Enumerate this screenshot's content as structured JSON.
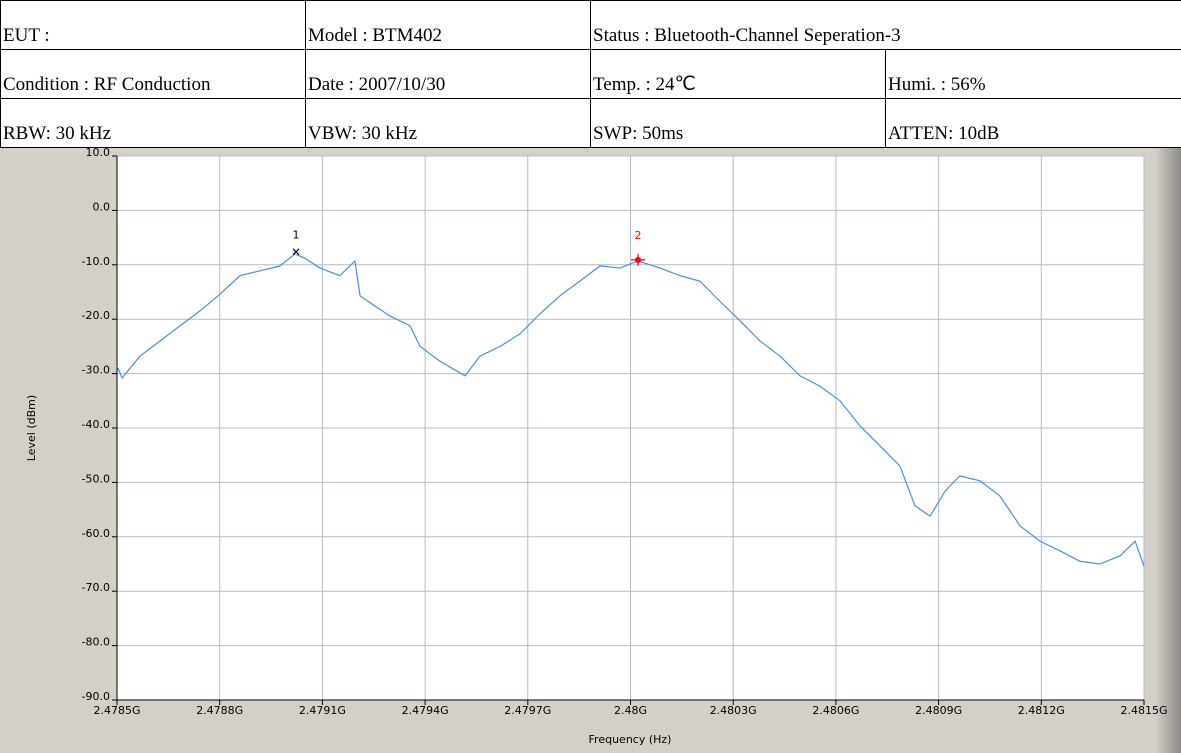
{
  "table": {
    "rows": [
      [
        "EUT :",
        "Model : BTM402",
        "Status : Bluetooth-Channel Seperation-3"
      ],
      [
        "Condition : RF Conduction",
        "Date : 2007/10/30",
        "Temp. : 24℃",
        "Humi. : 56%"
      ],
      [
        "RBW: 30 kHz",
        "VBW: 30 kHz",
        "SWP: 50ms",
        "ATTEN: 10dB"
      ]
    ]
  },
  "chart_data": {
    "type": "line",
    "xlabel": "Frequency (Hz)",
    "ylabel": "Level (dBm)",
    "grid": true,
    "xlim": [
      2478500000,
      2481500000
    ],
    "ylim": [
      -90,
      10
    ],
    "xticks": [
      {
        "value": 2478500000,
        "label": "2.4785G"
      },
      {
        "value": 2478800000,
        "label": "2.4788G"
      },
      {
        "value": 2479100000,
        "label": "2.4791G"
      },
      {
        "value": 2479400000,
        "label": "2.4794G"
      },
      {
        "value": 2479700000,
        "label": "2.4797G"
      },
      {
        "value": 2480000000,
        "label": "2.48G"
      },
      {
        "value": 2480300000,
        "label": "2.4803G"
      },
      {
        "value": 2480600000,
        "label": "2.4806G"
      },
      {
        "value": 2480900000,
        "label": "2.4809G"
      },
      {
        "value": 2481200000,
        "label": "2.4812G"
      },
      {
        "value": 2481500000,
        "label": "2.4815G"
      }
    ],
    "yticks": [
      {
        "value": 10,
        "label": "10.0"
      },
      {
        "value": 0,
        "label": "0.0"
      },
      {
        "value": -10,
        "label": "-10.0"
      },
      {
        "value": -20,
        "label": "-20.0"
      },
      {
        "value": -30,
        "label": "-30.0"
      },
      {
        "value": -40,
        "label": "-40.0"
      },
      {
        "value": -50,
        "label": "-50.0"
      },
      {
        "value": -60,
        "label": "-60.0"
      },
      {
        "value": -70,
        "label": "-70.0"
      },
      {
        "value": -80,
        "label": "-80.0"
      },
      {
        "value": -90,
        "label": "-90.0"
      }
    ],
    "series": [
      {
        "color": "#4a90d9",
        "x": [
          2478500000,
          2478515000,
          2478567000,
          2478626000,
          2478684000,
          2478742000,
          2478801000,
          2478859000,
          2478918000,
          2478976000,
          2479020000,
          2479049000,
          2479093000,
          2479151000,
          2479195000,
          2479210000,
          2479254000,
          2479297000,
          2479356000,
          2479385000,
          2479443000,
          2479517000,
          2479560000,
          2479619000,
          2479677000,
          2479736000,
          2479794000,
          2479852000,
          2479911000,
          2479969000,
          2480022000,
          2480086000,
          2480145000,
          2480203000,
          2480261000,
          2480320000,
          2480378000,
          2480437000,
          2480495000,
          2480553000,
          2480612000,
          2480670000,
          2480729000,
          2480787000,
          2480831000,
          2480875000,
          2480919000,
          2480962000,
          2481021000,
          2481079000,
          2481138000,
          2481196000,
          2481255000,
          2481313000,
          2481371000,
          2481430000,
          2481474000,
          2481500000
        ],
        "values": [
          -28.6,
          -30.8,
          -26.8,
          -24,
          -21.2,
          -18.5,
          -15.4,
          -12,
          -11.1,
          -10.2,
          -8,
          -8.8,
          -10.6,
          -12,
          -9.3,
          -15.7,
          -17.6,
          -19.4,
          -21.2,
          -25,
          -27.7,
          -30.4,
          -26.8,
          -25,
          -22.7,
          -19,
          -15.7,
          -13,
          -10.2,
          -10.6,
          -9.3,
          -10.6,
          -12,
          -13,
          -16.7,
          -20.3,
          -24,
          -26.8,
          -30.4,
          -32.3,
          -35,
          -39.6,
          -43.3,
          -47,
          -54.3,
          -56.2,
          -51.6,
          -48.8,
          -49.7,
          -52.5,
          -58,
          -60.8,
          -62.6,
          -64.5,
          -65,
          -63.5,
          -60.8,
          -65.4
        ]
      }
    ],
    "markers": [
      {
        "label": "1",
        "x": 2479023000,
        "y": -7.6,
        "color": "#000000"
      },
      {
        "label": "2",
        "x": 2480022000,
        "y": -9.1,
        "color": "#ff0000"
      }
    ]
  }
}
